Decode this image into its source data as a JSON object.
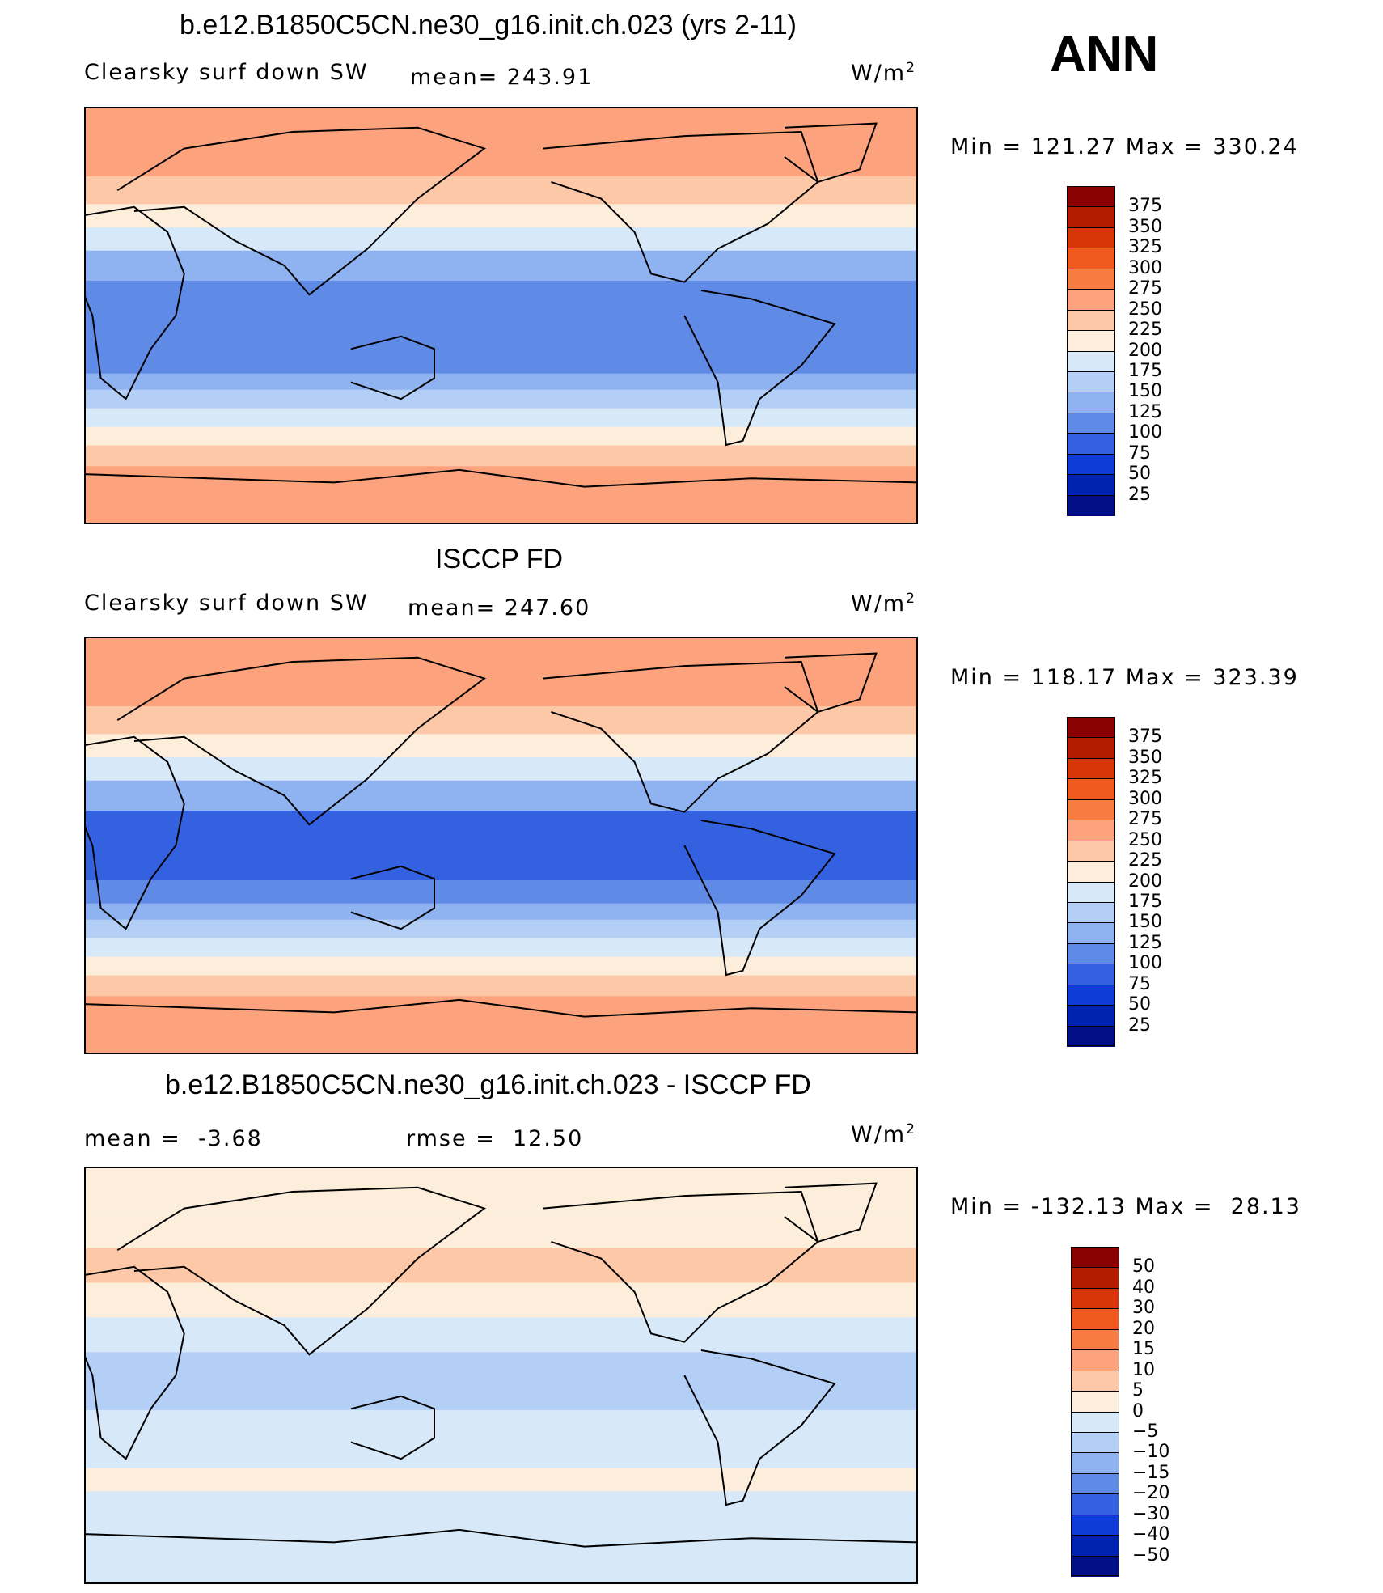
{
  "header": {
    "season": "ANN"
  },
  "chart_data": [
    {
      "type": "heatmap",
      "title": "b.e12.B1850C5CN.ne30_g16.init.ch.023 (yrs 2-11)",
      "variable": "Clearsky surf down SW",
      "stat_label": "mean= 243.91",
      "mean": 243.91,
      "units_base": "W/m",
      "units_exp": "2",
      "minmax_label": "Min = 121.27 Max = 330.24",
      "min": 121.27,
      "max": 330.24,
      "levels": [
        "375",
        "350",
        "325",
        "300",
        "275",
        "250",
        "225",
        "200",
        "175",
        "150",
        "125",
        "100",
        "75",
        "50",
        "25"
      ],
      "colors": [
        "#8b0000",
        "#b41c00",
        "#d63508",
        "#f05a1e",
        "#f77c42",
        "#fca27c",
        "#fdc8a8",
        "#fdeedc",
        "#d7e8f9",
        "#b4cff5",
        "#8fb2f0",
        "#5f8ae6",
        "#3361e0",
        "#0f3bd6",
        "#0022b0",
        "#000f85"
      ],
      "bands": [
        {
          "lat": 90,
          "c": 5
        },
        {
          "lat": 75,
          "c": 5
        },
        {
          "lat": 60,
          "c": 6
        },
        {
          "lat": 48,
          "c": 7
        },
        {
          "lat": 38,
          "c": 8
        },
        {
          "lat": 28,
          "c": 10
        },
        {
          "lat": 15,
          "c": 11
        },
        {
          "lat": 5,
          "c": 11
        },
        {
          "lat": -5,
          "c": 11
        },
        {
          "lat": -15,
          "c": 11
        },
        {
          "lat": -25,
          "c": 10
        },
        {
          "lat": -32,
          "c": 9
        },
        {
          "lat": -40,
          "c": 8
        },
        {
          "lat": -48,
          "c": 7
        },
        {
          "lat": -56,
          "c": 6
        },
        {
          "lat": -65,
          "c": 5
        },
        {
          "lat": -90,
          "c": 5
        }
      ]
    },
    {
      "type": "heatmap",
      "title": "ISCCP FD",
      "variable": "Clearsky surf down SW",
      "stat_label": "mean= 247.60",
      "mean": 247.6,
      "units_base": "W/m",
      "units_exp": "2",
      "minmax_label": "Min = 118.17 Max = 323.39",
      "min": 118.17,
      "max": 323.39,
      "levels": [
        "375",
        "350",
        "325",
        "300",
        "275",
        "250",
        "225",
        "200",
        "175",
        "150",
        "125",
        "100",
        "75",
        "50",
        "25"
      ],
      "colors": [
        "#8b0000",
        "#b41c00",
        "#d63508",
        "#f05a1e",
        "#f77c42",
        "#fca27c",
        "#fdc8a8",
        "#fdeedc",
        "#d7e8f9",
        "#b4cff5",
        "#8fb2f0",
        "#5f8ae6",
        "#3361e0",
        "#0f3bd6",
        "#0022b0",
        "#000f85"
      ],
      "bands": [
        {
          "lat": 90,
          "c": 5
        },
        {
          "lat": 75,
          "c": 5
        },
        {
          "lat": 60,
          "c": 6
        },
        {
          "lat": 48,
          "c": 7
        },
        {
          "lat": 38,
          "c": 8
        },
        {
          "lat": 28,
          "c": 10
        },
        {
          "lat": 15,
          "c": 12
        },
        {
          "lat": 5,
          "c": 12
        },
        {
          "lat": -5,
          "c": 12
        },
        {
          "lat": -15,
          "c": 11
        },
        {
          "lat": -25,
          "c": 10
        },
        {
          "lat": -32,
          "c": 9
        },
        {
          "lat": -40,
          "c": 8
        },
        {
          "lat": -48,
          "c": 7
        },
        {
          "lat": -56,
          "c": 6
        },
        {
          "lat": -65,
          "c": 5
        },
        {
          "lat": -90,
          "c": 5
        }
      ]
    },
    {
      "type": "heatmap",
      "title": "b.e12.B1850C5CN.ne30_g16.init.ch.023 - ISCCP FD",
      "stat_label": "mean =  -3.68",
      "mean": -3.68,
      "rmse_label": "rmse =  12.50",
      "rmse": 12.5,
      "units_base": "W/m",
      "units_exp": "2",
      "minmax_label": "Min = -132.13 Max =  28.13",
      "min": -132.13,
      "max": 28.13,
      "levels": [
        "50",
        "40",
        "30",
        "20",
        "15",
        "10",
        "5",
        "0",
        "-5",
        "-10",
        "-15",
        "-20",
        "-30",
        "-40",
        "-50"
      ],
      "colors": [
        "#8b0000",
        "#b41c00",
        "#d63508",
        "#f05a1e",
        "#f77c42",
        "#fca27c",
        "#fdc8a8",
        "#fdeedc",
        "#d7e8f9",
        "#b4cff5",
        "#8fb2f0",
        "#5f8ae6",
        "#3361e0",
        "#0f3bd6",
        "#0022b0",
        "#000f85"
      ],
      "bands": [
        {
          "lat": 90,
          "c": 7
        },
        {
          "lat": 70,
          "c": 7
        },
        {
          "lat": 55,
          "c": 6
        },
        {
          "lat": 40,
          "c": 7
        },
        {
          "lat": 25,
          "c": 8
        },
        {
          "lat": 10,
          "c": 9
        },
        {
          "lat": 0,
          "c": 9
        },
        {
          "lat": -15,
          "c": 8
        },
        {
          "lat": -28,
          "c": 8
        },
        {
          "lat": -40,
          "c": 7
        },
        {
          "lat": -50,
          "c": 8
        },
        {
          "lat": -62,
          "c": 8
        },
        {
          "lat": -90,
          "c": 8
        }
      ]
    }
  ]
}
